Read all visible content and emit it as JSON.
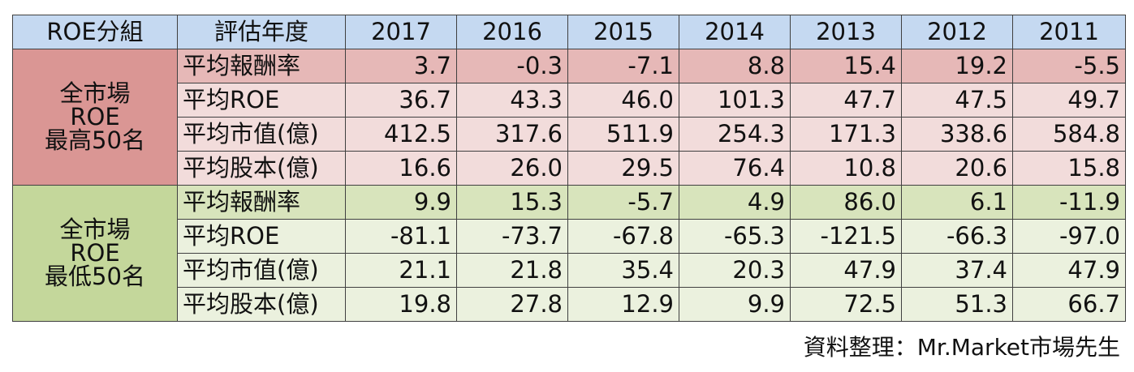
{
  "table": {
    "header": {
      "group_label": "ROE分組",
      "metric_label": "評估年度",
      "years": [
        "2017",
        "2016",
        "2015",
        "2014",
        "2013",
        "2012",
        "2011"
      ]
    },
    "groups": [
      {
        "name_lines": [
          "全市場",
          "ROE",
          "最高50名"
        ],
        "colors": {
          "group": "#da9694",
          "first_row": "#e6b8b7",
          "rows": "#f2dcdb"
        },
        "rows": [
          {
            "metric": "平均報酬率",
            "values": [
              "3.7",
              "-0.3",
              "-7.1",
              "8.8",
              "15.4",
              "19.2",
              "-5.5"
            ]
          },
          {
            "metric": "平均ROE",
            "values": [
              "36.7",
              "43.3",
              "46.0",
              "101.3",
              "47.7",
              "47.5",
              "49.7"
            ]
          },
          {
            "metric": "平均市值(億)",
            "values": [
              "412.5",
              "317.6",
              "511.9",
              "254.3",
              "171.3",
              "338.6",
              "584.8"
            ]
          },
          {
            "metric": "平均股本(億)",
            "values": [
              "16.6",
              "26.0",
              "29.5",
              "76.4",
              "10.8",
              "20.6",
              "15.8"
            ]
          }
        ]
      },
      {
        "name_lines": [
          "全市場",
          "ROE",
          "最低50名"
        ],
        "colors": {
          "group": "#c4d79b",
          "first_row": "#d8e4bc",
          "rows": "#ebf1de"
        },
        "rows": [
          {
            "metric": "平均報酬率",
            "values": [
              "9.9",
              "15.3",
              "-5.7",
              "4.9",
              "86.0",
              "6.1",
              "-11.9"
            ]
          },
          {
            "metric": "平均ROE",
            "values": [
              "-81.1",
              "-73.7",
              "-67.8",
              "-65.3",
              "-121.5",
              "-66.3",
              "-97.0"
            ]
          },
          {
            "metric": "平均市值(億)",
            "values": [
              "21.1",
              "21.8",
              "35.4",
              "20.3",
              "47.9",
              "37.4",
              "47.9"
            ]
          },
          {
            "metric": "平均股本(億)",
            "values": [
              "19.8",
              "27.8",
              "12.9",
              "9.9",
              "72.5",
              "51.3",
              "66.7"
            ]
          }
        ]
      }
    ],
    "header_color": "#c5d9f1"
  },
  "footer": {
    "source": "資料整理：Mr.Market市場先生"
  }
}
